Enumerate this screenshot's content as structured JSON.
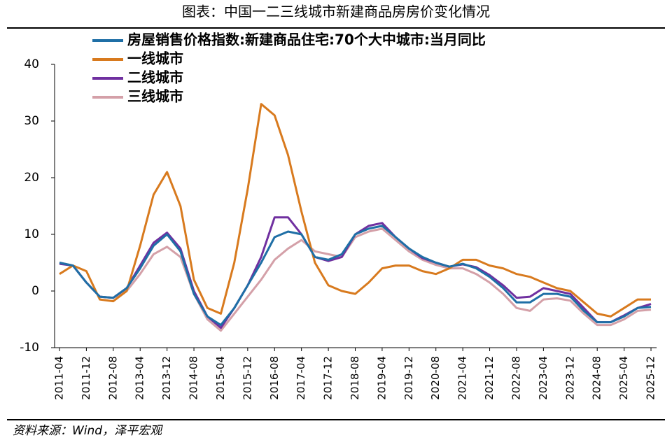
{
  "chart_data": {
    "type": "line",
    "title": "图表：中国一二三线城市新建商品房房价变化情况",
    "source": "资料来源：Wind，泽平宏观",
    "categories": [
      "2011-04",
      null,
      "2011-12",
      null,
      "2012-08",
      null,
      "2013-04",
      null,
      "2013-12",
      null,
      "2014-08",
      null,
      "2015-04",
      null,
      "2015-12",
      null,
      "2016-08",
      null,
      "2017-04",
      null,
      "2017-12",
      null,
      "2018-08",
      null,
      "2019-04",
      null,
      "2019-12",
      null,
      "2020-08",
      null,
      "2021-04",
      null,
      "2021-12",
      null,
      "2022-08",
      null,
      "2023-04",
      null,
      "2023-12",
      null,
      "2024-08",
      null,
      "2025-04",
      null,
      "2025-12"
    ],
    "series": [
      {
        "name": "房屋销售价格指数:新建商品住宅:70个大中城市:当月同比",
        "color": "#1f6fa6",
        "values": [
          5,
          4.5,
          1.5,
          -1,
          -1.2,
          0.5,
          4,
          8,
          10,
          7,
          -0.5,
          -4.5,
          -6,
          -3,
          1,
          5,
          9.5,
          10.5,
          10,
          6,
          5.5,
          6.5,
          10,
          11,
          11.5,
          9.5,
          7.5,
          6,
          5,
          4.3,
          4.8,
          4,
          2.5,
          0.5,
          -2,
          -2,
          -0.5,
          -0.5,
          -1,
          -3.5,
          -5.5,
          -5.5,
          -4.5,
          -3,
          -2.8
        ]
      },
      {
        "name": "一线城市",
        "color": "#d87a1e",
        "values": [
          3,
          4.5,
          3.5,
          -1.5,
          -1.8,
          0,
          8,
          17,
          21,
          15,
          2,
          -3,
          -4,
          5,
          18,
          33,
          31,
          24,
          14,
          5,
          1,
          0,
          -0.5,
          1.5,
          4,
          4.5,
          4.5,
          3.5,
          3,
          4,
          5.5,
          5.5,
          4.5,
          4,
          3,
          2.5,
          1.5,
          0.5,
          0,
          -2,
          -4,
          -4.5,
          -3,
          -1.5,
          -1.5
        ]
      },
      {
        "name": "二线城市",
        "color": "#7030a0",
        "values": [
          4.8,
          4.5,
          1.5,
          -1,
          -1.2,
          0.5,
          4.5,
          8.5,
          10.3,
          7.5,
          0,
          -4.5,
          -6.5,
          -3,
          1,
          6,
          13,
          13,
          10,
          6,
          5.3,
          6,
          10,
          11.5,
          12,
          9.5,
          7.5,
          5.8,
          5,
          4.3,
          4.7,
          4.2,
          2.8,
          1,
          -1.2,
          -1,
          0.5,
          0,
          -0.5,
          -3,
          -5.5,
          -5.5,
          -4.3,
          -3,
          -2.3
        ]
      },
      {
        "name": "三线城市",
        "color": "#d4a0a8",
        "values": [
          5,
          4.5,
          1.5,
          -1,
          -1.2,
          0,
          3,
          6.5,
          7.8,
          6,
          -0.5,
          -5,
          -7,
          -4,
          -1,
          2,
          5.5,
          7.5,
          9,
          7,
          6.5,
          6,
          9.5,
          10.5,
          11,
          9,
          7,
          5.5,
          4.6,
          4,
          4,
          3,
          1.5,
          -0.5,
          -3,
          -3.5,
          -1.5,
          -1.3,
          -1.7,
          -4,
          -6,
          -6,
          -5,
          -3.5,
          -3.3
        ]
      }
    ],
    "ylim": [
      -10,
      40
    ],
    "yticks": [
      -10,
      0,
      10,
      20,
      30,
      40
    ],
    "grid": false
  }
}
